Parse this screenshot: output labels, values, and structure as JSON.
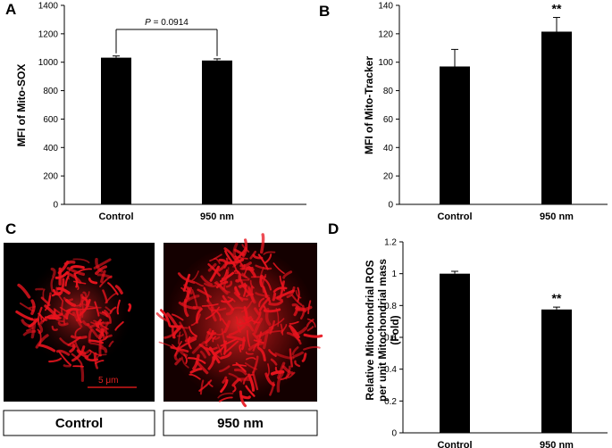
{
  "panel_letters": {
    "a": "A",
    "b": "B",
    "c": "C",
    "d": "D"
  },
  "chart_data": [
    {
      "id": "a",
      "type": "bar",
      "categories": [
        "Control",
        "950 nm"
      ],
      "values": [
        1032,
        1012
      ],
      "errors": [
        12,
        12
      ],
      "ylabel": "MFI of Mito-SOX",
      "ylim": [
        0,
        1400
      ],
      "yticks": [
        0,
        200,
        400,
        600,
        800,
        1000,
        1200,
        1400
      ],
      "grid": false,
      "annotation": {
        "label_italic": "P",
        "label_rest": " = 0.0914"
      }
    },
    {
      "id": "b",
      "type": "bar",
      "categories": [
        "Control",
        "950 nm"
      ],
      "values": [
        97,
        121.5
      ],
      "errors": [
        12,
        10
      ],
      "ylabel": "MFI of Mito-Tracker",
      "ylim": [
        0,
        140
      ],
      "yticks": [
        0,
        20,
        40,
        60,
        80,
        100,
        120,
        140
      ],
      "grid": false,
      "significance": [
        "",
        "**"
      ]
    },
    {
      "id": "d",
      "type": "bar",
      "categories": [
        "Control",
        "950 nm"
      ],
      "values": [
        1.0,
        0.775
      ],
      "errors": [
        0.015,
        0.015
      ],
      "ylabel_lines": [
        "Relative Mitochondrial ROS",
        "per unit Mitochondrial mass",
        "(Fold)"
      ],
      "ylim": [
        0,
        1.2
      ],
      "yticks": [
        "0",
        "0.2",
        "0.4",
        "0.6",
        "0.8",
        "1",
        "1.2"
      ],
      "grid": false,
      "significance": [
        "",
        "**"
      ]
    }
  ],
  "images": {
    "labels": [
      "Control",
      "950 nm"
    ],
    "scale_bar": "5 μm",
    "colors": {
      "background": "#000000",
      "signal": "#e8141e"
    }
  }
}
